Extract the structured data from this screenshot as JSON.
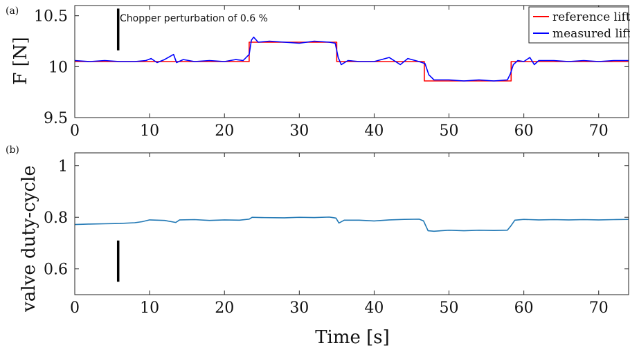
{
  "chart_data": [
    {
      "type": "line",
      "panel_label": "(a)",
      "title": "",
      "xlabel": "",
      "ylabel": "F [N]",
      "xlim": [
        0,
        74
      ],
      "ylim": [
        9.5,
        10.6
      ],
      "xticks": [
        0,
        10,
        20,
        30,
        40,
        50,
        60,
        70
      ],
      "yticks": [
        9.5,
        10,
        10.5
      ],
      "ytick_labels": [
        "9.5",
        "10",
        "10.5"
      ],
      "grid": false,
      "legend_position": "top-right",
      "annotation": "Chopper perturbation of 0.6 %",
      "annotation_bar": {
        "x": 5.8,
        "y_from": 10.16,
        "y_to": 10.57
      },
      "series": [
        {
          "name": "reference lift",
          "color": "#ff0000",
          "x": [
            0,
            23.3,
            23.3,
            35.0,
            35.0,
            46.7,
            46.7,
            58.3,
            58.3,
            74
          ],
          "y": [
            10.05,
            10.05,
            10.24,
            10.24,
            10.05,
            10.05,
            9.86,
            9.86,
            10.05,
            10.05
          ]
        },
        {
          "name": "measured lift",
          "color": "#0000ff",
          "x": [
            0,
            2,
            4,
            6,
            8,
            9.5,
            10.2,
            11,
            12,
            13.2,
            13.6,
            14.5,
            16,
            18,
            20,
            21.5,
            22.5,
            23.3,
            23.6,
            23.9,
            24.5,
            26,
            28,
            30,
            32,
            34,
            34.8,
            35.2,
            35.6,
            36.5,
            38,
            40,
            42,
            43.5,
            44.5,
            46,
            46.8,
            47.3,
            48,
            50,
            52,
            54,
            56,
            57.8,
            58.2,
            58.6,
            59.2,
            60,
            60.8,
            61.4,
            62,
            64,
            66,
            68,
            70,
            72,
            74
          ],
          "y": [
            10.06,
            10.05,
            10.06,
            10.05,
            10.05,
            10.06,
            10.08,
            10.04,
            10.07,
            10.12,
            10.04,
            10.07,
            10.05,
            10.06,
            10.05,
            10.07,
            10.06,
            10.12,
            10.26,
            10.29,
            10.24,
            10.25,
            10.24,
            10.23,
            10.25,
            10.24,
            10.23,
            10.09,
            10.02,
            10.06,
            10.05,
            10.05,
            10.09,
            10.02,
            10.08,
            10.05,
            10.03,
            9.92,
            9.87,
            9.87,
            9.86,
            9.87,
            9.86,
            9.87,
            9.93,
            10.02,
            10.06,
            10.05,
            10.09,
            10.02,
            10.06,
            10.06,
            10.05,
            10.06,
            10.05,
            10.06,
            10.06
          ]
        }
      ]
    },
    {
      "type": "line",
      "panel_label": "(b)",
      "title": "",
      "xlabel": "Time [s]",
      "ylabel": "valve duty-cycle",
      "xlim": [
        0,
        74
      ],
      "ylim": [
        0.5,
        1.05
      ],
      "xticks": [
        0,
        10,
        20,
        30,
        40,
        50,
        60,
        70
      ],
      "yticks": [
        0.6,
        0.8,
        1
      ],
      "ytick_labels": [
        "0.6",
        "0.8",
        "1"
      ],
      "grid": false,
      "annotation_bar": {
        "x": 5.8,
        "y_from": 0.55,
        "y_to": 0.71
      },
      "series": [
        {
          "color": "#1f77b4",
          "x": [
            0,
            2,
            4,
            6,
            8,
            9,
            10,
            12,
            13.5,
            14,
            16,
            18,
            20,
            22,
            23.3,
            23.7,
            25,
            28,
            30,
            32,
            34,
            34.9,
            35.3,
            36,
            38,
            40,
            42,
            44,
            46,
            46.6,
            47.2,
            48,
            50,
            52,
            54,
            56,
            57.8,
            58.3,
            58.8,
            60,
            62,
            64,
            66,
            68,
            70,
            72,
            74
          ],
          "y": [
            0.772,
            0.774,
            0.775,
            0.776,
            0.779,
            0.783,
            0.79,
            0.788,
            0.78,
            0.79,
            0.791,
            0.788,
            0.79,
            0.789,
            0.793,
            0.8,
            0.799,
            0.798,
            0.8,
            0.799,
            0.801,
            0.797,
            0.778,
            0.789,
            0.789,
            0.786,
            0.79,
            0.792,
            0.793,
            0.786,
            0.748,
            0.746,
            0.75,
            0.748,
            0.75,
            0.749,
            0.75,
            0.768,
            0.789,
            0.792,
            0.79,
            0.791,
            0.79,
            0.791,
            0.79,
            0.791,
            0.792
          ]
        }
      ]
    }
  ]
}
